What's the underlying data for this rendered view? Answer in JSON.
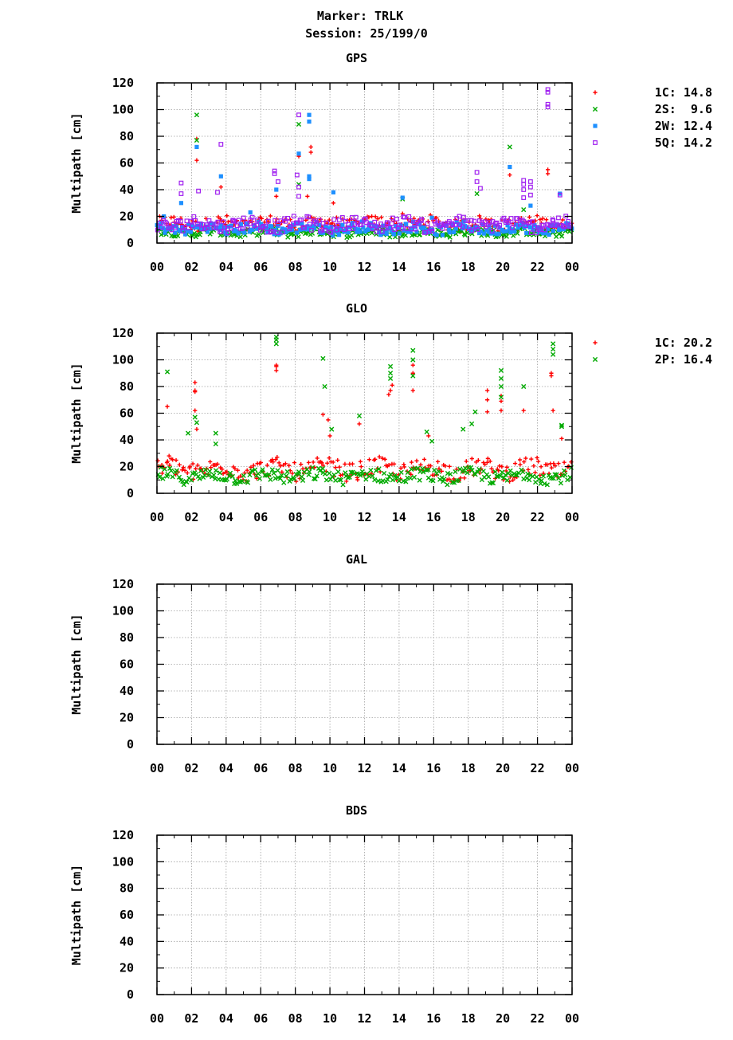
{
  "figure": {
    "title_line1": "Marker: TRLK",
    "title_line2": "Session: 25/199/0"
  },
  "chart_data": [
    {
      "type": "scatter",
      "title": "GPS",
      "ylabel": "Multipath [cm]",
      "xlabel": "",
      "ylim": [
        0,
        120
      ],
      "xlim": [
        0,
        24
      ],
      "yticks": [
        "0",
        "20",
        "40",
        "60",
        "80",
        "100",
        "120"
      ],
      "xticks": [
        "00",
        "02",
        "04",
        "06",
        "08",
        "10",
        "12",
        "14",
        "16",
        "18",
        "20",
        "22",
        "00"
      ],
      "grid": true,
      "legend_position": "right",
      "series": [
        {
          "name": "1C",
          "value_label": "14.8",
          "legend_text": "1C: 14.8",
          "color": "#ff0000",
          "marker": "plus",
          "base": 14.5,
          "spread": 5,
          "spikes": [
            [
              2.3,
              62
            ],
            [
              2.3,
              78
            ],
            [
              3.7,
              42
            ],
            [
              6.9,
              35
            ],
            [
              8.2,
              65
            ],
            [
              8.7,
              35
            ],
            [
              8.9,
              68
            ],
            [
              8.9,
              72
            ],
            [
              10.2,
              30
            ],
            [
              14.2,
              22
            ],
            [
              20.4,
              51
            ],
            [
              22.6,
              52
            ],
            [
              22.6,
              55
            ]
          ]
        },
        {
          "name": "2S",
          "value_label": "9.6",
          "legend_text": "2S:  9.6",
          "color": "#00aa00",
          "marker": "cross",
          "base": 8,
          "spread": 3,
          "spikes": [
            [
              2.3,
              96
            ],
            [
              2.3,
              77
            ],
            [
              8.2,
              89
            ],
            [
              8.2,
              44
            ],
            [
              14.2,
              33
            ],
            [
              18.5,
              37
            ],
            [
              20.4,
              72
            ],
            [
              21.2,
              25
            ]
          ]
        },
        {
          "name": "2W",
          "value_label": "12.4",
          "legend_text": "2W: 12.4",
          "color": "#1e90ff",
          "marker": "square",
          "base": 11,
          "spread": 4,
          "spikes": [
            [
              0.4,
              20
            ],
            [
              1.4,
              30
            ],
            [
              2.3,
              72
            ],
            [
              3.7,
              50
            ],
            [
              5.4,
              23
            ],
            [
              6.9,
              40
            ],
            [
              8.2,
              67
            ],
            [
              8.8,
              91
            ],
            [
              8.8,
              96
            ],
            [
              8.8,
              48
            ],
            [
              8.8,
              50
            ],
            [
              10.2,
              38
            ],
            [
              14.2,
              34
            ],
            [
              15.9,
              19
            ],
            [
              20.4,
              57
            ],
            [
              21.6,
              28
            ],
            [
              23.3,
              37
            ]
          ]
        },
        {
          "name": "5Q",
          "value_label": "14.2",
          "legend_text": "5Q: 14.2",
          "color": "#a020f0",
          "marker": "open-square",
          "base": 14,
          "spread": 5,
          "spikes": [
            [
              1.4,
              45
            ],
            [
              1.4,
              37
            ],
            [
              2.4,
              39
            ],
            [
              3.5,
              38
            ],
            [
              3.7,
              74
            ],
            [
              6.8,
              54
            ],
            [
              6.8,
              52
            ],
            [
              7.0,
              46
            ],
            [
              8.1,
              51
            ],
            [
              8.2,
              96
            ],
            [
              8.2,
              42
            ],
            [
              8.2,
              35
            ],
            [
              18.5,
              53
            ],
            [
              18.5,
              46
            ],
            [
              18.7,
              41
            ],
            [
              21.2,
              47
            ],
            [
              21.2,
              44
            ],
            [
              21.2,
              40
            ],
            [
              21.2,
              34
            ],
            [
              21.6,
              46
            ],
            [
              21.6,
              42
            ],
            [
              21.6,
              36
            ],
            [
              22.6,
              115
            ],
            [
              22.6,
              113
            ],
            [
              22.6,
              104
            ],
            [
              22.6,
              102
            ],
            [
              23.3,
              36
            ]
          ]
        }
      ]
    },
    {
      "type": "scatter",
      "title": "GLO",
      "ylabel": "Multipath [cm]",
      "xlabel": "",
      "ylim": [
        0,
        120
      ],
      "xlim": [
        0,
        24
      ],
      "yticks": [
        "0",
        "20",
        "40",
        "60",
        "80",
        "100",
        "120"
      ],
      "xticks": [
        "00",
        "02",
        "04",
        "06",
        "08",
        "10",
        "12",
        "14",
        "16",
        "18",
        "20",
        "22",
        "00"
      ],
      "grid": true,
      "legend_position": "right",
      "series": [
        {
          "name": "1C",
          "value_label": "20.2",
          "legend_text": "1C: 20.2",
          "color": "#ff0000",
          "marker": "plus",
          "base": 18,
          "spread": 7,
          "spikes": [
            [
              0.6,
              65
            ],
            [
              0.7,
              28
            ],
            [
              2.2,
              83
            ],
            [
              2.2,
              77
            ],
            [
              2.2,
              76
            ],
            [
              2.2,
              62
            ],
            [
              2.3,
              48
            ],
            [
              6.9,
              92
            ],
            [
              6.9,
              95
            ],
            [
              6.9,
              96
            ],
            [
              9.6,
              59
            ],
            [
              9.9,
              55
            ],
            [
              10.0,
              43
            ],
            [
              11.7,
              52
            ],
            [
              13.4,
              74
            ],
            [
              13.5,
              77
            ],
            [
              13.6,
              81
            ],
            [
              14.8,
              77
            ],
            [
              14.8,
              90
            ],
            [
              14.8,
              96
            ],
            [
              15.7,
              43
            ],
            [
              19.1,
              77
            ],
            [
              19.1,
              70
            ],
            [
              19.1,
              61
            ],
            [
              19.9,
              73
            ],
            [
              19.9,
              69
            ],
            [
              19.9,
              62
            ],
            [
              21.2,
              62
            ],
            [
              22.8,
              90
            ],
            [
              22.8,
              88
            ],
            [
              22.9,
              62
            ],
            [
              23.4,
              41
            ]
          ]
        },
        {
          "name": "2P",
          "value_label": "16.4",
          "legend_text": "2P: 16.4",
          "color": "#00aa00",
          "marker": "cross",
          "base": 13,
          "spread": 5,
          "spikes": [
            [
              0.6,
              91
            ],
            [
              1.8,
              45
            ],
            [
              2.2,
              57
            ],
            [
              2.3,
              53
            ],
            [
              3.4,
              45
            ],
            [
              3.4,
              37
            ],
            [
              6.9,
              117
            ],
            [
              6.9,
              115
            ],
            [
              6.9,
              112
            ],
            [
              9.6,
              101
            ],
            [
              9.7,
              80
            ],
            [
              10.1,
              48
            ],
            [
              11.7,
              58
            ],
            [
              13.5,
              95
            ],
            [
              13.5,
              90
            ],
            [
              13.5,
              86
            ],
            [
              14.8,
              107
            ],
            [
              14.8,
              100
            ],
            [
              14.8,
              88
            ],
            [
              15.6,
              46
            ],
            [
              15.9,
              39
            ],
            [
              17.7,
              48
            ],
            [
              18.2,
              52
            ],
            [
              18.4,
              61
            ],
            [
              19.9,
              92
            ],
            [
              19.9,
              86
            ],
            [
              19.9,
              80
            ],
            [
              19.9,
              72
            ],
            [
              21.2,
              80
            ],
            [
              22.9,
              112
            ],
            [
              22.9,
              108
            ],
            [
              22.9,
              104
            ],
            [
              23.4,
              51
            ],
            [
              23.4,
              50
            ]
          ]
        }
      ]
    },
    {
      "type": "scatter",
      "title": "GAL",
      "ylabel": "Multipath [cm]",
      "xlabel": "",
      "ylim": [
        0,
        120
      ],
      "xlim": [
        0,
        24
      ],
      "yticks": [
        "0",
        "20",
        "40",
        "60",
        "80",
        "100",
        "120"
      ],
      "xticks": [
        "00",
        "02",
        "04",
        "06",
        "08",
        "10",
        "12",
        "14",
        "16",
        "18",
        "20",
        "22",
        "00"
      ],
      "grid": true,
      "legend_position": "right",
      "series": []
    },
    {
      "type": "scatter",
      "title": "BDS",
      "ylabel": "Multipath [cm]",
      "xlabel": "",
      "ylim": [
        0,
        120
      ],
      "xlim": [
        0,
        24
      ],
      "yticks": [
        "0",
        "20",
        "40",
        "60",
        "80",
        "100",
        "120"
      ],
      "xticks": [
        "00",
        "02",
        "04",
        "06",
        "08",
        "10",
        "12",
        "14",
        "16",
        "18",
        "20",
        "22",
        "00"
      ],
      "grid": true,
      "legend_position": "right",
      "series": []
    }
  ]
}
